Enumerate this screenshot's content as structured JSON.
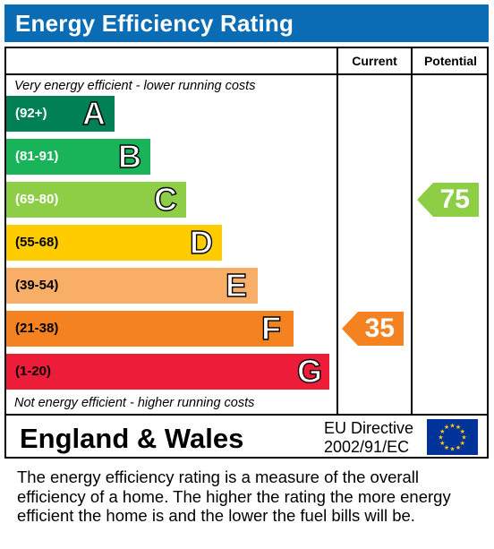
{
  "title": "Energy Efficiency Rating",
  "columns": {
    "current": "Current",
    "potential": "Potential"
  },
  "top_note": "Very energy efficient - lower running costs",
  "bottom_note": "Not energy efficient - higher running costs",
  "region": "England & Wales",
  "directive": {
    "line1": "EU Directive",
    "line2": "2002/91/EC"
  },
  "footer": "The energy efficiency rating is a measure of the overall efficiency of a home.  The higher the rating the more energy efficient the home is and the lower the fuel bills will be.",
  "chart_data": {
    "type": "bar",
    "title": "Energy Efficiency Rating",
    "bands": [
      {
        "range": "(92+)",
        "letter": "A",
        "color": "#008054",
        "text_dark": false
      },
      {
        "range": "(81-91)",
        "letter": "B",
        "color": "#19b459",
        "text_dark": false
      },
      {
        "range": "(69-80)",
        "letter": "C",
        "color": "#8dce46",
        "text_dark": false
      },
      {
        "range": "(55-68)",
        "letter": "D",
        "color": "#ffcc00",
        "text_dark": true
      },
      {
        "range": "(39-54)",
        "letter": "E",
        "color": "#f8ae67",
        "text_dark": true
      },
      {
        "range": "(21-38)",
        "letter": "F",
        "color": "#f58220",
        "text_dark": true
      },
      {
        "range": "(1-20)",
        "letter": "G",
        "color": "#ed1c39",
        "text_dark": true
      }
    ],
    "current": {
      "value": 35,
      "band": "F",
      "color": "#f58220"
    },
    "potential": {
      "value": 75,
      "band": "C",
      "color": "#8dce46"
    }
  }
}
